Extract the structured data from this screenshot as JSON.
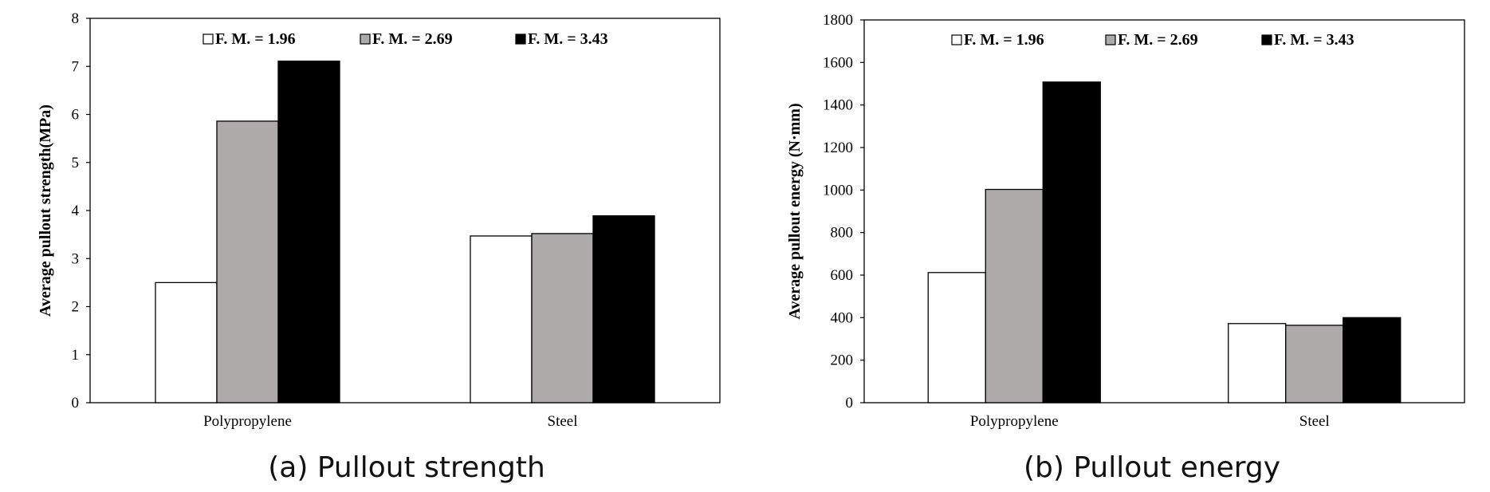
{
  "chart_data": [
    {
      "type": "bar",
      "caption": "(a) Pullout strength",
      "ylabel": "Average pullout strength(MPa)",
      "xlabel": "",
      "categories": [
        "Polypropylene",
        "Steel"
      ],
      "ylim": [
        0,
        8
      ],
      "yticks": [
        0,
        1,
        2,
        3,
        4,
        5,
        6,
        7,
        8
      ],
      "series": [
        {
          "name": "F. M. = 1.96",
          "values": [
            2.5,
            3.47
          ],
          "color": "#ffffff"
        },
        {
          "name": "F. M. = 2.69",
          "values": [
            5.86,
            3.52
          ],
          "color": "#aeaaaa"
        },
        {
          "name": "F. M. = 3.43",
          "values": [
            7.11,
            3.89
          ],
          "color": "#000000"
        }
      ],
      "legend": "top-center",
      "grid": false
    },
    {
      "type": "bar",
      "caption": "(b) Pullout energy",
      "ylabel": "Average pullout energy (N·mm)",
      "xlabel": "",
      "categories": [
        "Polypropylene",
        "Steel"
      ],
      "ylim": [
        0,
        1800
      ],
      "yticks": [
        0,
        200,
        400,
        600,
        800,
        1000,
        1200,
        1400,
        1600,
        1800
      ],
      "series": [
        {
          "name": "F. M. = 1.96",
          "values": [
            612,
            372
          ],
          "color": "#ffffff"
        },
        {
          "name": "F. M. = 2.69",
          "values": [
            1003,
            364
          ],
          "color": "#aeaaaa"
        },
        {
          "name": "F. M. = 3.43",
          "values": [
            1508,
            400
          ],
          "color": "#000000"
        }
      ],
      "legend": "top-center",
      "grid": false
    }
  ]
}
